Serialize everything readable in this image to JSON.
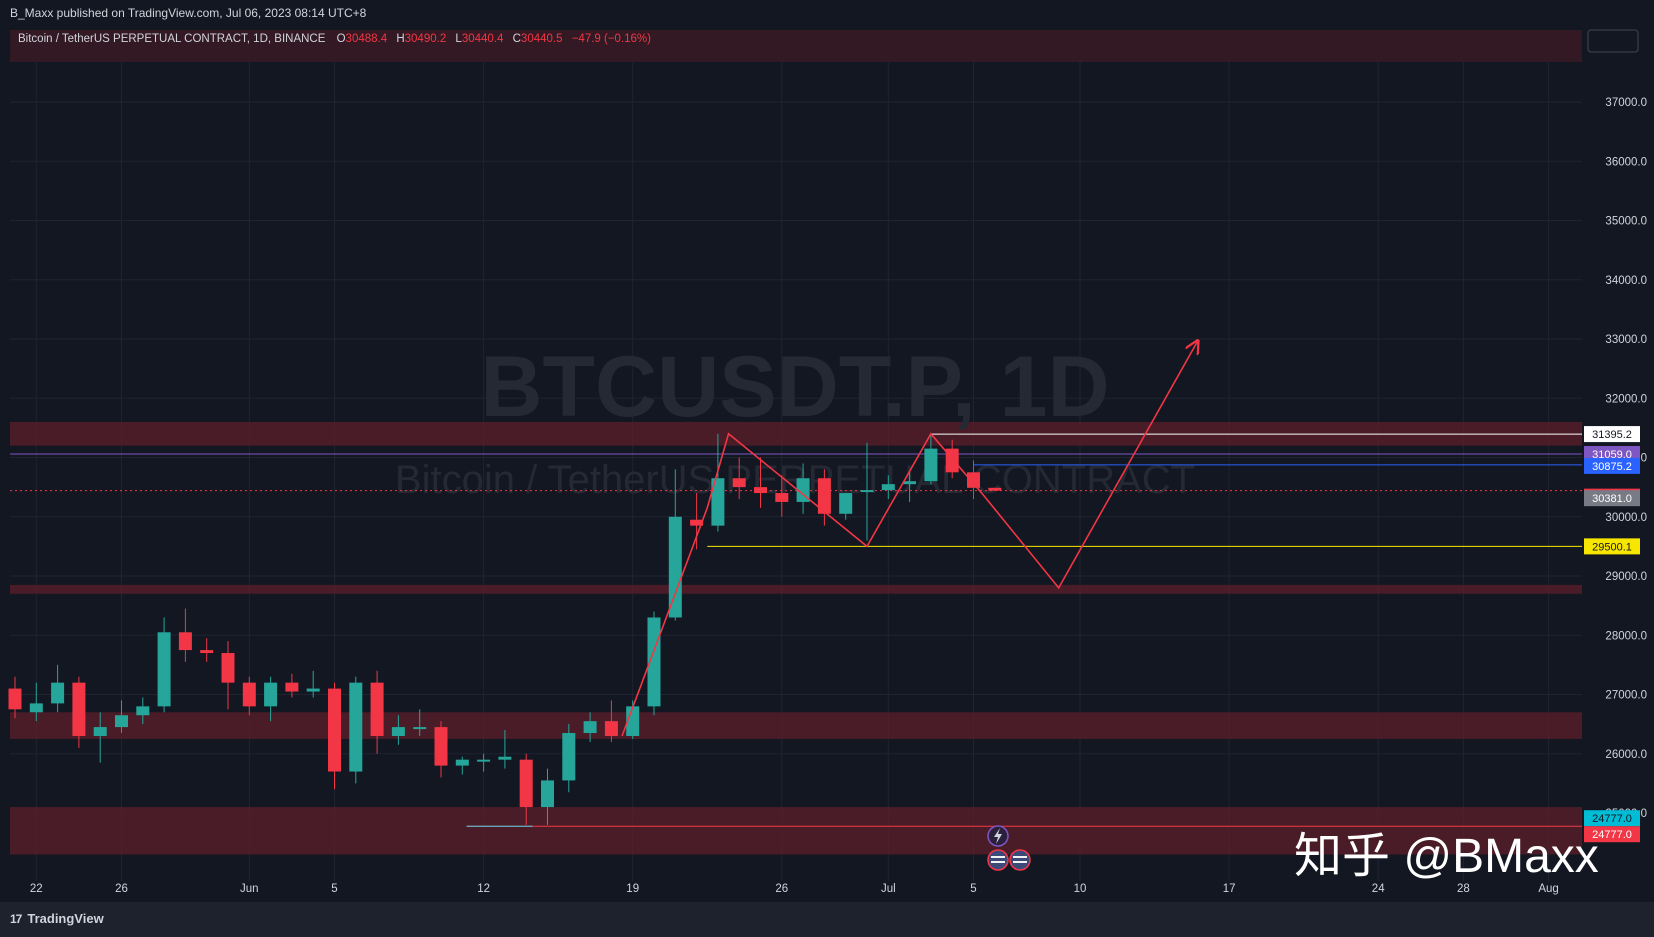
{
  "header": {
    "publisher_line": "B_Maxx published on TradingView.com, Jul 06, 2023 08:14 UTC+8"
  },
  "legend": {
    "symbol": "Bitcoin / TetherUS PERPETUAL CONTRACT, 1D, BINANCE",
    "o_label": "O",
    "o_value": "30488.4",
    "h_label": "H",
    "h_value": "30490.2",
    "l_label": "L",
    "l_value": "30440.4",
    "c_label": "C",
    "c_value": "30440.5",
    "change": "−47.9 (−0.16%)"
  },
  "watermark": {
    "main": "BTCUSDT.P, 1D",
    "sub": "Bitcoin / TetherUS PERPETUAL CONTRACT"
  },
  "overlay_text": "知乎 @BMaxx",
  "footer": {
    "brand": "TradingView",
    "brand_mark": "17"
  },
  "colors": {
    "background": "#131722",
    "up": "#26a69a",
    "down": "#f23645",
    "zone": "#5c1f2a",
    "grid": "#1f2430",
    "axis_text": "#d1d4dc",
    "projection": "#f23645",
    "support": "#f7e600",
    "resistance_line": "#ffffff",
    "blue_line": "#2962ff",
    "purple_line": "#7e57c2"
  },
  "chart_data": {
    "type": "candlestick",
    "title": "BTCUSDT.P, 1D",
    "y_axis": {
      "range": [
        24400,
        37700
      ],
      "ticks": [
        25000,
        26000,
        27000,
        28000,
        29000,
        30000,
        31000,
        32000,
        33000,
        34000,
        35000,
        36000,
        37000
      ],
      "tick_labels": [
        "25000.0",
        "26000.0",
        "27000.0",
        "28000.0",
        "29000.0",
        "30000.0",
        "31000.0",
        "32000.0",
        "33000.0",
        "34000.0",
        "35000.0",
        "36000.0",
        "37000.0"
      ]
    },
    "x_axis": {
      "tick_labels": [
        "22",
        "26",
        "Jun",
        "5",
        "12",
        "19",
        "26",
        "Jul",
        "5",
        "10",
        "17",
        "24",
        "28",
        "Aug"
      ],
      "tick_days": [
        1,
        5,
        11,
        15,
        22,
        29,
        36,
        41,
        45,
        50,
        57,
        64,
        68,
        72
      ]
    },
    "candles": [
      {
        "d": 0,
        "o": 27100,
        "h": 27300,
        "l": 26600,
        "c": 26750
      },
      {
        "d": 1,
        "o": 26700,
        "h": 27200,
        "l": 26550,
        "c": 26850
      },
      {
        "d": 2,
        "o": 26850,
        "h": 27500,
        "l": 26700,
        "c": 27200
      },
      {
        "d": 3,
        "o": 27200,
        "h": 27300,
        "l": 26100,
        "c": 26300
      },
      {
        "d": 4,
        "o": 26300,
        "h": 26700,
        "l": 25850,
        "c": 26450
      },
      {
        "d": 5,
        "o": 26450,
        "h": 26900,
        "l": 26350,
        "c": 26650
      },
      {
        "d": 6,
        "o": 26650,
        "h": 26950,
        "l": 26500,
        "c": 26800
      },
      {
        "d": 7,
        "o": 26800,
        "h": 28300,
        "l": 26700,
        "c": 28050
      },
      {
        "d": 8,
        "o": 28050,
        "h": 28450,
        "l": 27550,
        "c": 27750
      },
      {
        "d": 9,
        "o": 27750,
        "h": 27950,
        "l": 27550,
        "c": 27700
      },
      {
        "d": 10,
        "o": 27700,
        "h": 27900,
        "l": 26750,
        "c": 27200
      },
      {
        "d": 11,
        "o": 27200,
        "h": 27300,
        "l": 26650,
        "c": 26800
      },
      {
        "d": 12,
        "o": 26800,
        "h": 27300,
        "l": 26550,
        "c": 27200
      },
      {
        "d": 13,
        "o": 27200,
        "h": 27350,
        "l": 26950,
        "c": 27050
      },
      {
        "d": 14,
        "o": 27050,
        "h": 27400,
        "l": 26950,
        "c": 27100
      },
      {
        "d": 15,
        "o": 27100,
        "h": 27200,
        "l": 25400,
        "c": 25700
      },
      {
        "d": 16,
        "o": 25700,
        "h": 27300,
        "l": 25500,
        "c": 27200
      },
      {
        "d": 17,
        "o": 27200,
        "h": 27400,
        "l": 26000,
        "c": 26300
      },
      {
        "d": 18,
        "o": 26300,
        "h": 26650,
        "l": 26150,
        "c": 26450
      },
      {
        "d": 19,
        "o": 26450,
        "h": 26750,
        "l": 26300,
        "c": 26450
      },
      {
        "d": 20,
        "o": 26450,
        "h": 26550,
        "l": 25600,
        "c": 25800
      },
      {
        "d": 21,
        "o": 25800,
        "h": 25950,
        "l": 25650,
        "c": 25900
      },
      {
        "d": 22,
        "o": 25900,
        "h": 26000,
        "l": 25700,
        "c": 25900
      },
      {
        "d": 23,
        "o": 25900,
        "h": 26400,
        "l": 25750,
        "c": 25950
      },
      {
        "d": 24,
        "o": 25900,
        "h": 26000,
        "l": 24800,
        "c": 25100
      },
      {
        "d": 25,
        "o": 25100,
        "h": 25750,
        "l": 24800,
        "c": 25550
      },
      {
        "d": 26,
        "o": 25550,
        "h": 26500,
        "l": 25350,
        "c": 26350
      },
      {
        "d": 27,
        "o": 26350,
        "h": 26700,
        "l": 26200,
        "c": 26550
      },
      {
        "d": 28,
        "o": 26550,
        "h": 26900,
        "l": 26200,
        "c": 26300
      },
      {
        "d": 29,
        "o": 26300,
        "h": 26900,
        "l": 26250,
        "c": 26800
      },
      {
        "d": 30,
        "o": 26800,
        "h": 28400,
        "l": 26650,
        "c": 28300
      },
      {
        "d": 31,
        "o": 28300,
        "h": 30800,
        "l": 28250,
        "c": 30000
      },
      {
        "d": 32,
        "o": 29950,
        "h": 30400,
        "l": 29450,
        "c": 29850
      },
      {
        "d": 33,
        "o": 29850,
        "h": 31400,
        "l": 29750,
        "c": 30650
      },
      {
        "d": 34,
        "o": 30650,
        "h": 31000,
        "l": 30300,
        "c": 30500
      },
      {
        "d": 35,
        "o": 30500,
        "h": 31000,
        "l": 30150,
        "c": 30400
      },
      {
        "d": 36,
        "o": 30400,
        "h": 30700,
        "l": 30000,
        "c": 30250
      },
      {
        "d": 37,
        "o": 30250,
        "h": 30900,
        "l": 30050,
        "c": 30650
      },
      {
        "d": 38,
        "o": 30650,
        "h": 30800,
        "l": 29850,
        "c": 30050
      },
      {
        "d": 39,
        "o": 30050,
        "h": 30400,
        "l": 29950,
        "c": 30400
      },
      {
        "d": 40,
        "o": 30450,
        "h": 31250,
        "l": 29600,
        "c": 30450
      },
      {
        "d": 41,
        "o": 30450,
        "h": 30700,
        "l": 30300,
        "c": 30550
      },
      {
        "d": 42,
        "o": 30550,
        "h": 30750,
        "l": 30250,
        "c": 30600
      },
      {
        "d": 43,
        "o": 30600,
        "h": 31380,
        "l": 30550,
        "c": 31150
      },
      {
        "d": 44,
        "o": 31150,
        "h": 31300,
        "l": 30650,
        "c": 30750
      },
      {
        "d": 45,
        "o": 30750,
        "h": 30950,
        "l": 30300,
        "c": 30488.4
      },
      {
        "d": 46,
        "o": 30488.4,
        "h": 30490.2,
        "l": 30440.4,
        "c": 30440.5
      }
    ],
    "zones": [
      {
        "from": 31200,
        "to": 31600
      },
      {
        "from": 28700,
        "to": 28850
      },
      {
        "from": 26250,
        "to": 26700
      },
      {
        "from": 24300,
        "to": 25100
      }
    ],
    "price_labels": [
      {
        "value": 31395.2,
        "label": "31395.2"
      },
      {
        "value": 31059.0,
        "label": "31059.0"
      },
      {
        "value": 30875.2,
        "label": "30875.2"
      },
      {
        "value": 30440.5,
        "label": "30440.5"
      },
      {
        "value": 30381.0,
        "label": "30381.0"
      },
      {
        "value": 29500.1,
        "label": "29500.1"
      },
      {
        "value": 24777.0,
        "label": "24777.0"
      },
      {
        "value": 24777.0,
        "label": "24777.0"
      }
    ],
    "projection_path": [
      {
        "d": 28.5,
        "v": 26300
      },
      {
        "d": 32.5,
        "v": 30150
      },
      {
        "d": 33.5,
        "v": 31400
      },
      {
        "d": 40,
        "v": 29500
      },
      {
        "d": 43,
        "v": 31400
      },
      {
        "d": 45.5,
        "v": 30350
      },
      {
        "d": 49,
        "v": 28800
      },
      {
        "d": 55.5,
        "v": 32950
      }
    ],
    "support_level": {
      "value": 29500.1,
      "from_day": 32.5
    },
    "resistance_level": {
      "value": 31395.2,
      "from_day": 43
    }
  }
}
